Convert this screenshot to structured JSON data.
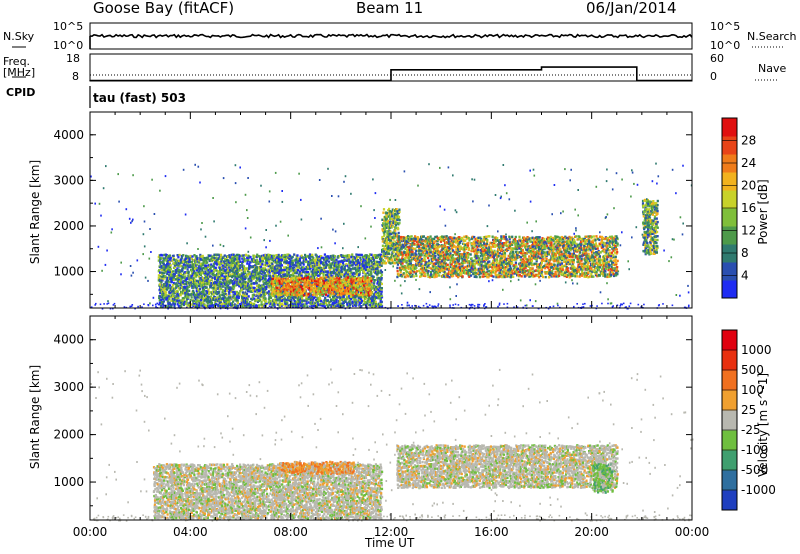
{
  "header": {
    "station": "Goose Bay (fitACF)",
    "beam": "Beam 11",
    "date": "06/Jan/2014"
  },
  "top_panels": {
    "nsky_label": "N.Sky",
    "nsky_tick_hi": "10^5",
    "nsky_tick_lo": "10^0",
    "nsearch_label": "N.Search",
    "nsearch_tick_hi": "10^5",
    "nsearch_tick_lo": "10^0",
    "freq_label_1": "Freq.",
    "freq_label_2": "[MHz]",
    "freq_tick_hi": "18",
    "freq_tick_lo": "8",
    "nave_label": "Nave",
    "nave_tick_hi": "60",
    "nave_tick_lo": "0",
    "cpid_label": "CPID",
    "cpid_value": "tau (fast) 503"
  },
  "chart_data": [
    {
      "type": "heatmap",
      "title": "",
      "xlabel": "",
      "ylabel": "Slant Range [km]",
      "yticks": [
        "1000",
        "2000",
        "3000",
        "4000"
      ],
      "ylim": [
        200,
        4500
      ],
      "xlim": [
        0,
        24
      ],
      "colorbar_label": "Power [dB]",
      "colorbar_ticks": [
        "4",
        "8",
        "12",
        "16",
        "20",
        "24",
        "28"
      ],
      "colorbar_colors": [
        "#1f2cf2",
        "#2a4fb0",
        "#2f7a6f",
        "#4d9a4a",
        "#7fbf3a",
        "#c8d22a",
        "#f2b21e",
        "#f07c1a",
        "#e84418",
        "#e01010"
      ],
      "echo_regions": [
        {
          "t_start": 2.7,
          "t_end": 11.6,
          "r_start": 250,
          "r_end": 1400,
          "level": "low-mid"
        },
        {
          "t_start": 7.2,
          "t_end": 11.2,
          "r_start": 500,
          "r_end": 900,
          "level": "high"
        },
        {
          "t_start": 11.6,
          "t_end": 12.3,
          "r_start": 1200,
          "r_end": 2400,
          "level": "mid"
        },
        {
          "t_start": 12.2,
          "t_end": 21.0,
          "r_start": 900,
          "r_end": 1800,
          "level": "mid-high"
        },
        {
          "t_start": 22.0,
          "t_end": 22.6,
          "r_start": 1400,
          "r_end": 2600,
          "level": "mid"
        }
      ]
    },
    {
      "type": "heatmap",
      "title": "",
      "xlabel": "Time UT",
      "ylabel": "Slant Range [km]",
      "xticks": [
        "00:00",
        "04:00",
        "08:00",
        "12:00",
        "16:00",
        "20:00",
        "00:00"
      ],
      "yticks": [
        "1000",
        "2000",
        "3000",
        "4000"
      ],
      "ylim": [
        200,
        4500
      ],
      "xlim": [
        0,
        24
      ],
      "colorbar_label": "Velocity [m s^-1]",
      "colorbar_ticks": [
        "1000",
        "500",
        "100",
        "25",
        "-25",
        "-100",
        "-500",
        "-1000"
      ],
      "colorbar_colors": [
        "#1f3fbf",
        "#2f6f9f",
        "#3f9f6f",
        "#6fbf3f",
        "#b8b8b0",
        "#f0a030",
        "#f07020",
        "#e83010",
        "#e00010"
      ],
      "echo_regions": [
        {
          "t_start": 2.5,
          "t_end": 11.6,
          "r_start": 250,
          "r_end": 1400,
          "level": "near-zero"
        },
        {
          "t_start": 7.5,
          "t_end": 10.5,
          "r_start": 1200,
          "r_end": 1450,
          "level": "-100"
        },
        {
          "t_start": 12.2,
          "t_end": 21.0,
          "r_start": 900,
          "r_end": 1800,
          "level": "near-zero"
        },
        {
          "t_start": 20.0,
          "t_end": 20.8,
          "r_start": 800,
          "r_end": 1400,
          "level": "100"
        }
      ]
    }
  ],
  "line_data": {
    "nsky_level": 0.8,
    "freq_mhz": [
      [
        0,
        10
      ],
      [
        12.0,
        10
      ],
      [
        12.0,
        14
      ],
      [
        18.0,
        14
      ],
      [
        18.0,
        15
      ],
      [
        21.8,
        15
      ],
      [
        21.8,
        10
      ],
      [
        24,
        10
      ]
    ],
    "nave": [
      [
        0,
        4
      ],
      [
        24,
        4
      ]
    ]
  },
  "colors": {
    "axis": "#000000",
    "background": "#ffffff"
  }
}
